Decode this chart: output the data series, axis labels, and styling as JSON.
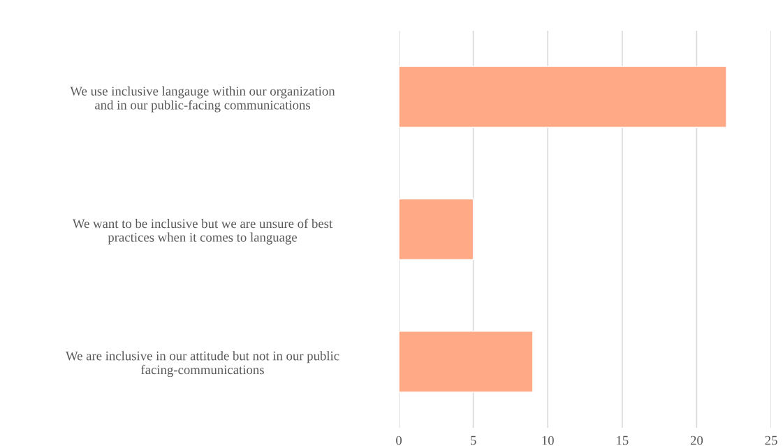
{
  "chart_data": {
    "type": "bar",
    "orientation": "horizontal",
    "categories": [
      "We use inclusive langauge within our organization\nand in our public-facing communications",
      "We want to be inclusive but we are unsure of best\npractices when it comes to language",
      "We are inclusive in our attitude but not in our public\nfacing-communications"
    ],
    "values": [
      22,
      5,
      9
    ],
    "color": "#ffa987",
    "xlim": [
      0,
      25
    ],
    "xticks": [
      0,
      5,
      10,
      15,
      20,
      25
    ],
    "grid": "x",
    "legend": false
  }
}
